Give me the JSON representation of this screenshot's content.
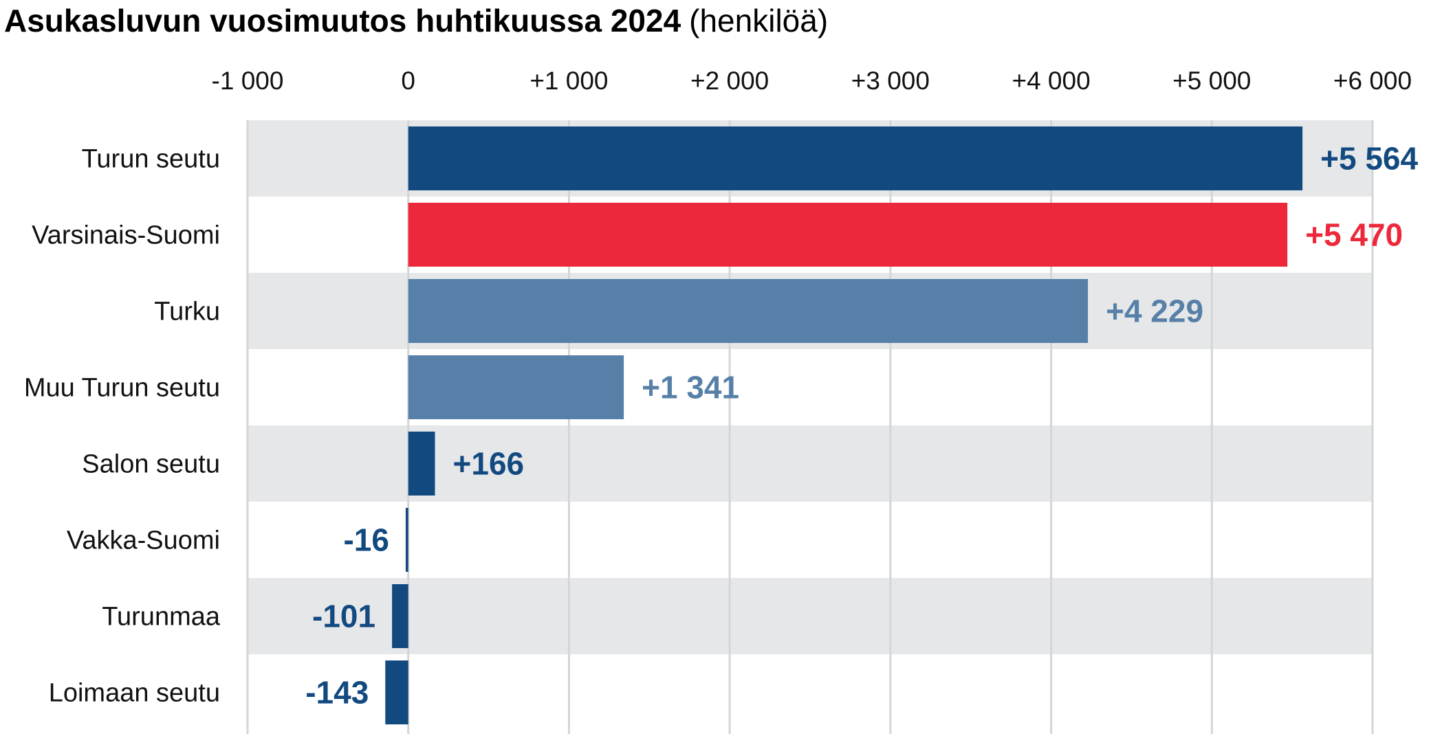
{
  "chart_data": {
    "type": "bar",
    "orientation": "horizontal",
    "title": "Asukasluvun vuosimuutos huhtikuussa 2024",
    "unit": "(henkilöä)",
    "categories": [
      "Turun seutu",
      "Varsinais-Suomi",
      "Turku",
      "Muu Turun seutu",
      "Salon seutu",
      "Vakka-Suomi",
      "Turunmaa",
      "Loimaan seutu"
    ],
    "values": [
      5564,
      5470,
      4229,
      1341,
      166,
      -16,
      -101,
      -143
    ],
    "value_labels": [
      "+5 564",
      "+5 470",
      "+4 229",
      "+1 341",
      "+166",
      "-16",
      "-101",
      "-143"
    ],
    "colors": [
      "#124a80",
      "#ec283a",
      "#5780a8",
      "#5780a8",
      "#124a80",
      "#124a80",
      "#124a80",
      "#124a80"
    ],
    "xlim": [
      -1000,
      6000
    ],
    "xticks": [
      -1000,
      0,
      1000,
      2000,
      3000,
      4000,
      5000,
      6000
    ],
    "xtick_labels": [
      "-1 000",
      "0",
      "+1 000",
      "+2 000",
      "+3 000",
      "+4 000",
      "+5 000",
      "+6 000"
    ],
    "xaxis_position": "top",
    "grid": true,
    "row_banding": true,
    "band_color": "#e6e7e9",
    "gridline_color": "#d4d5d7"
  }
}
